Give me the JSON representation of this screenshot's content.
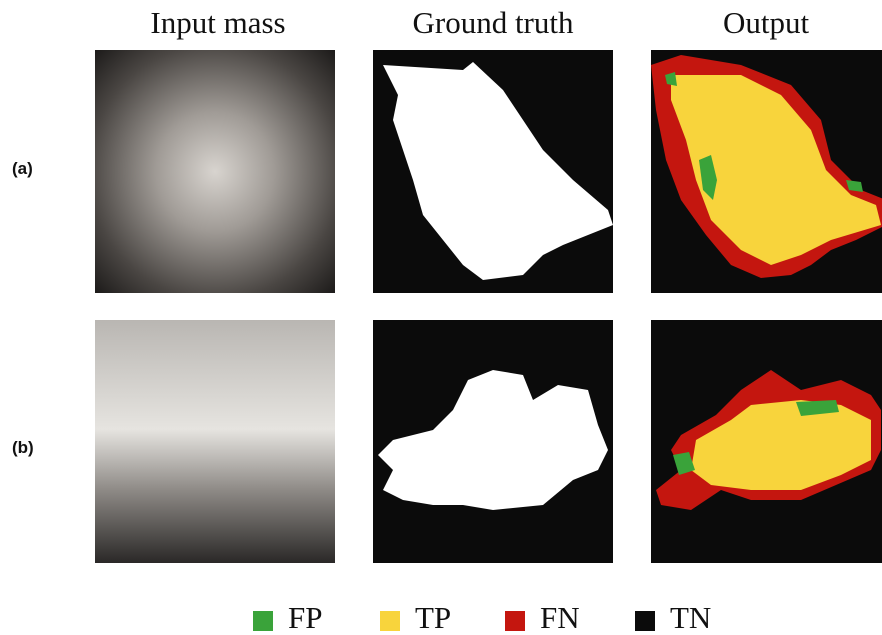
{
  "columns": [
    "Input mass",
    "Ground truth",
    "Output"
  ],
  "rows": [
    "(a)",
    "(b)"
  ],
  "legend": [
    "FP",
    "TP",
    "FN",
    "TN"
  ]
}
